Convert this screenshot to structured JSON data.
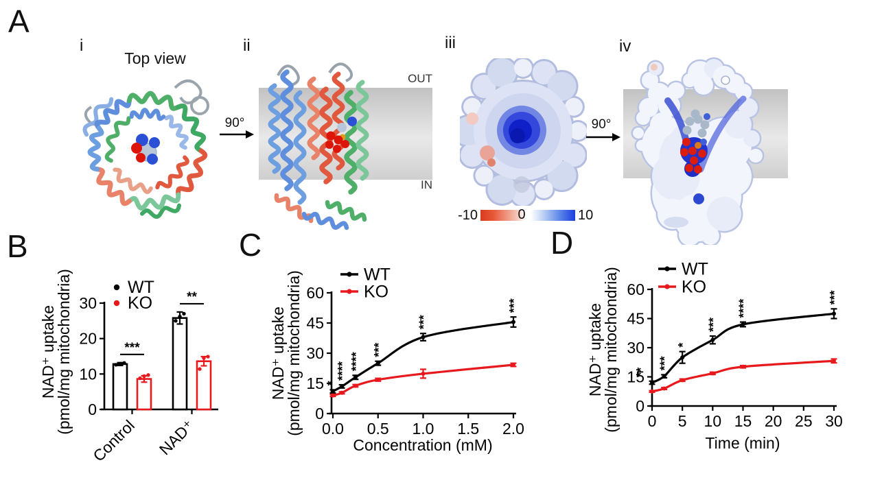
{
  "figure": {
    "panel_labels": {
      "A": "A",
      "B": "B",
      "C": "C",
      "D": "D"
    },
    "panelA": {
      "i": {
        "label": "i",
        "title": "Top view"
      },
      "ii": {
        "label": "ii",
        "out": "OUT",
        "in": "IN",
        "rotation": "90°"
      },
      "iii": {
        "label": "iii",
        "rotation": "90°",
        "colorbar_min": "-10",
        "colorbar_mid": "0",
        "colorbar_max": "10"
      },
      "iv": {
        "label": "iv"
      }
    }
  },
  "colors": {
    "wt": "#000000",
    "ko": "#e8191d"
  },
  "chart_data": [
    {
      "panel": "B",
      "type": "bar",
      "categories": [
        "Control",
        "NAD⁺"
      ],
      "series": [
        {
          "name": "WT",
          "color": "#000000",
          "values": [
            12.8,
            25.8
          ],
          "errors": [
            0.4,
            1.7
          ],
          "points": [
            [
              12.6,
              12.9,
              13.1
            ],
            [
              25.0,
              26.2,
              27.0
            ]
          ]
        },
        {
          "name": "KO",
          "color": "#e8191d",
          "values": [
            8.6,
            13.6
          ],
          "errors": [
            0.9,
            1.3
          ],
          "points": [
            [
              8.8,
              9.4,
              9.7
            ],
            [
              11.4,
              14.5,
              14.9
            ]
          ]
        }
      ],
      "significance": [
        "***",
        "**"
      ],
      "ylabel": [
        "NAD⁺ uptake",
        "(pmol/mg mitochondria)"
      ],
      "yticks": [
        "0",
        "10",
        "20",
        "30"
      ],
      "ylim": [
        0,
        30
      ],
      "legend": [
        "WT",
        "KO"
      ]
    },
    {
      "panel": "C",
      "type": "line",
      "x": [
        0,
        0.1,
        0.25,
        0.5,
        1,
        2
      ],
      "xticks": [
        "0.0",
        "0.5",
        "1.0",
        "1.5",
        "2.0"
      ],
      "xtick_values": [
        0,
        0.5,
        1,
        1.5,
        2
      ],
      "xlabel": "Concentration (mM)",
      "ylabel": [
        "NAD⁺ uptake",
        "(pmol/mg mitochondria)"
      ],
      "yticks": [
        "0",
        "15",
        "30",
        "45",
        "60"
      ],
      "ylim": [
        0,
        60
      ],
      "xlim": [
        0,
        2
      ],
      "series": [
        {
          "name": "WT",
          "color": "#000000",
          "values": [
            11,
            13.5,
            18,
            25,
            38,
            45.5
          ],
          "errors": [
            0.8,
            0.8,
            1,
            1,
            1.8,
            2.5
          ]
        },
        {
          "name": "KO",
          "color": "#e8191d",
          "values": [
            9,
            10.3,
            13.8,
            16.8,
            19.8,
            24.2
          ],
          "errors": [
            0.5,
            0.5,
            0.6,
            0.7,
            2.2,
            0.8
          ]
        }
      ],
      "significance": [
        "*",
        "****",
        "****",
        "***",
        "***",
        "***"
      ],
      "legend": [
        "WT",
        "KO"
      ]
    },
    {
      "panel": "D",
      "type": "line",
      "x": [
        0,
        2,
        5,
        10,
        15,
        30
      ],
      "xticks": [
        "0",
        "5",
        "10",
        "15",
        "20",
        "25",
        "30"
      ],
      "xtick_values": [
        0,
        5,
        10,
        15,
        20,
        25,
        30
      ],
      "xlabel": "Time (min)",
      "ylabel": [
        "NAD⁺ uptake",
        "(pmol/mg mitochondria)"
      ],
      "yticks": [
        "0",
        "15",
        "30",
        "45",
        "60"
      ],
      "ylim": [
        0,
        60
      ],
      "xlim": [
        0,
        30
      ],
      "series": [
        {
          "name": "WT",
          "color": "#000000",
          "values": [
            12,
            15.3,
            25,
            34,
            42,
            47.5
          ],
          "errors": [
            0.8,
            0.8,
            3,
            2,
            1.2,
            2.5
          ]
        },
        {
          "name": "KO",
          "color": "#e8191d",
          "values": [
            7.5,
            9,
            13.3,
            16.8,
            20.2,
            23.2
          ],
          "errors": [
            0.4,
            0.5,
            0.6,
            0.6,
            0.6,
            1
          ]
        }
      ],
      "significance": [
        "**",
        "***",
        "*",
        "***",
        "****",
        "***"
      ],
      "legend": [
        "WT",
        "KO"
      ]
    }
  ]
}
